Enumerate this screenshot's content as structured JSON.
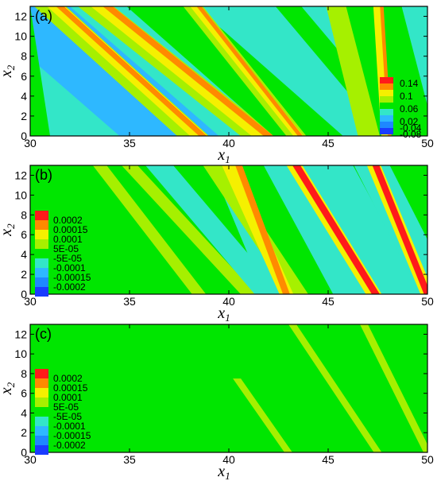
{
  "chart_data": [
    {
      "type": "heatmap",
      "panel_label": "(a)",
      "xlabel": "x",
      "xlabel_sub": "1",
      "ylabel": "x",
      "ylabel_sub": "2",
      "xlim": [
        30,
        50
      ],
      "ylim": [
        0,
        13
      ],
      "xticks": [
        30,
        35,
        40,
        45,
        50
      ],
      "yticks": [
        0,
        2,
        4,
        6,
        8,
        10,
        12
      ],
      "background_color": "#33e6c8",
      "legend": {
        "position": "bottom-right",
        "colors": [
          "#ff1a1a",
          "#ff8a00",
          "#f5f000",
          "#a6f000",
          "#00e600",
          "#33e6c8",
          "#2eb8ff",
          "#1e88ff",
          "#1a3cff"
        ],
        "labels": [
          "0.14",
          "0.1",
          "0.06",
          "0.02",
          "-0.04",
          "-0.08"
        ]
      },
      "bands": [
        {
          "x_at_top": 29.5,
          "x_at_bottom": 37.0,
          "width": 5.0,
          "color": "#2eb8ff"
        },
        {
          "x_at_top": 31.0,
          "x_at_bottom": 38.2,
          "width": 1.6,
          "color": "#a6f000"
        },
        {
          "x_at_top": 31.3,
          "x_at_bottom": 38.5,
          "width": 0.9,
          "color": "#f5f000"
        },
        {
          "x_at_top": 31.5,
          "x_at_bottom": 38.7,
          "width": 0.4,
          "color": "#ff8a00"
        },
        {
          "x_at_top": 33.3,
          "x_at_bottom": 41.5,
          "width": 1.8,
          "color": "#a6f000"
        },
        {
          "x_at_top": 33.6,
          "x_at_bottom": 41.7,
          "width": 1.1,
          "color": "#f5f000"
        },
        {
          "x_at_top": 33.9,
          "x_at_bottom": 42.0,
          "width": 0.5,
          "color": "#ff8a00"
        },
        {
          "x_at_top": 36.6,
          "x_at_bottom": 44.0,
          "width": 3.5,
          "color": "#00e600"
        },
        {
          "x_at_top": 38.2,
          "x_at_bottom": 43.4,
          "width": 1.0,
          "color": "#a6f000"
        },
        {
          "x_at_top": 38.3,
          "x_at_bottom": 43.5,
          "width": 0.5,
          "color": "#f5f000"
        },
        {
          "x_at_top": 38.5,
          "x_at_bottom": 43.6,
          "width": 0.25,
          "color": "#ff8a00"
        },
        {
          "x_at_top": 43.0,
          "x_at_bottom": 48.5,
          "width": 1.3,
          "color": "#00e600"
        },
        {
          "x_at_top": 45.6,
          "x_at_bottom": 47.2,
          "width": 1.4,
          "color": "#a6f000"
        },
        {
          "x_at_top": 47.3,
          "x_at_bottom": 49.0,
          "width": 2.8,
          "color": "#00e600"
        },
        {
          "x_at_top": 47.5,
          "x_at_bottom": 47.9,
          "width": 0.45,
          "color": "#f5f000"
        },
        {
          "x_at_top": 47.7,
          "x_at_bottom": 48.1,
          "width": 0.18,
          "color": "#ff8a00"
        },
        {
          "x_at_top": 29.5,
          "x_at_bottom": 30.5,
          "width": 1.0,
          "color": "#00e600"
        }
      ]
    },
    {
      "type": "heatmap",
      "panel_label": "(b)",
      "xlabel": "x",
      "xlabel_sub": "1",
      "ylabel": "x",
      "ylabel_sub": "2",
      "xlim": [
        30,
        50
      ],
      "ylim": [
        0,
        13
      ],
      "xticks": [
        30,
        35,
        40,
        45,
        50
      ],
      "yticks": [
        0,
        2,
        4,
        6,
        8,
        10,
        12
      ],
      "background_color": "#00e600",
      "legend": {
        "position": "left",
        "colors": [
          "#ff1a1a",
          "#ff8a00",
          "#f5f000",
          "#a6f000",
          "#00e600",
          "#33e6c8",
          "#2eb8ff",
          "#1e88ff",
          "#1a3cff"
        ],
        "labels": [
          "0.0002",
          "0.00015",
          "0.0001",
          "5E-05",
          "-5E-05",
          "-0.0001",
          "-0.00015",
          "-0.0002"
        ]
      },
      "bands": [
        {
          "x_at_top": 33.5,
          "x_at_bottom": 38.5,
          "width": 0.7,
          "color": "#a6f000"
        },
        {
          "x_at_top": 35.0,
          "x_at_bottom": 41.0,
          "width": 0.8,
          "color": "#a6f000"
        },
        {
          "x_at_top": 36.5,
          "x_at_bottom": 42.0,
          "width": 1.4,
          "color": "#33e6c8"
        },
        {
          "x_at_top": 39.5,
          "x_at_bottom": 42.2,
          "width": 0.8,
          "color": "#33e6c8"
        },
        {
          "x_at_top": 39.2,
          "x_at_bottom": 43.5,
          "width": 1.0,
          "color": "#a6f000"
        },
        {
          "x_at_top": 40.0,
          "x_at_bottom": 42.9,
          "width": 0.7,
          "color": "#f5f000"
        },
        {
          "x_at_top": 40.5,
          "x_at_bottom": 42.9,
          "width": 0.35,
          "color": "#ff8a00"
        },
        {
          "x_at_top": 44.0,
          "x_at_bottom": 47.5,
          "width": 4.5,
          "color": "#33e6c8"
        },
        {
          "x_at_top": 43.3,
          "x_at_bottom": 47.3,
          "width": 0.8,
          "color": "#f5f000"
        },
        {
          "x_at_top": 43.4,
          "x_at_bottom": 47.4,
          "width": 0.4,
          "color": "#ff1a1a"
        },
        {
          "x_at_top": 47.2,
          "x_at_bottom": 50.5,
          "width": 1.8,
          "color": "#33e6c8"
        },
        {
          "x_at_top": 47.3,
          "x_at_bottom": 50.0,
          "width": 0.7,
          "color": "#f5f000"
        },
        {
          "x_at_top": 47.4,
          "x_at_bottom": 50.0,
          "width": 0.35,
          "color": "#ff1a1a"
        }
      ]
    },
    {
      "type": "heatmap",
      "panel_label": "(c)",
      "xlabel": "x",
      "xlabel_sub": "1",
      "ylabel": "x",
      "ylabel_sub": "2",
      "xlim": [
        30,
        50
      ],
      "ylim": [
        0,
        13
      ],
      "xticks": [
        30,
        35,
        40,
        45,
        50
      ],
      "yticks": [
        0,
        2,
        4,
        6,
        8,
        10,
        12
      ],
      "background_color": "#00e600",
      "legend": {
        "position": "left",
        "colors": [
          "#ff1a1a",
          "#ff8a00",
          "#f5f000",
          "#a6f000",
          "#00e600",
          "#33e6c8",
          "#2eb8ff",
          "#1e88ff",
          "#1a3cff"
        ],
        "labels": [
          "0.0002",
          "0.00015",
          "0.0001",
          "5E-05",
          "-5E-05",
          "-0.0001",
          "-0.00015",
          "-0.0002"
        ]
      },
      "bands": [
        {
          "x_at_top": 38.5,
          "x_at_bottom": 43.0,
          "width": 0.4,
          "color": "#a6f000",
          "y_top": 7.5,
          "y_bottom": 0.0
        },
        {
          "x_at_top": 43.2,
          "x_at_bottom": 47.5,
          "width": 0.4,
          "color": "#a6f000"
        },
        {
          "x_at_top": 46.8,
          "x_at_bottom": 50.0,
          "width": 0.4,
          "color": "#a6f000"
        }
      ]
    }
  ]
}
